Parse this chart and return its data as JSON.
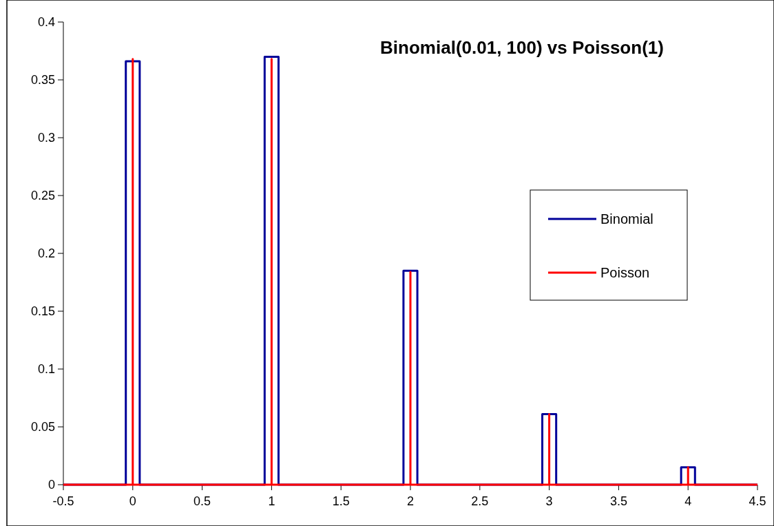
{
  "chart_data": {
    "type": "line",
    "title": "Binomial(0.01, 100) vs Poisson(1)",
    "series": [
      {
        "name": "Binomial",
        "color": "#000099",
        "x": [
          -0.5,
          -0.05,
          -0.05,
          0.05,
          0.05,
          0.95,
          0.95,
          1.05,
          1.05,
          1.95,
          1.95,
          2.05,
          2.05,
          2.95,
          2.95,
          3.05,
          3.05,
          3.95,
          3.95,
          4.05,
          4.05,
          4.5
        ],
        "values": [
          0,
          0,
          0.366,
          0.366,
          0,
          0,
          0.37,
          0.37,
          0,
          0,
          0.185,
          0.185,
          0,
          0,
          0.061,
          0.061,
          0,
          0,
          0.015,
          0.015,
          0,
          0
        ]
      },
      {
        "name": "Poisson",
        "color": "#ff0000",
        "x": [
          -0.5,
          0,
          0,
          0,
          1,
          1,
          1,
          2,
          2,
          2,
          3,
          3,
          3,
          4,
          4,
          4,
          4.5
        ],
        "values": [
          0,
          0,
          0.368,
          0,
          0,
          0.368,
          0,
          0,
          0.184,
          0,
          0,
          0.061,
          0,
          0,
          0.015,
          0,
          0
        ]
      }
    ],
    "xlim": [
      -0.5,
      4.5
    ],
    "xticks": [
      -0.5,
      0,
      0.5,
      1,
      1.5,
      2,
      2.5,
      3,
      3.5,
      4,
      4.5
    ],
    "ylim": [
      0,
      0.4
    ],
    "yticks": [
      0,
      0.05,
      0.1,
      0.15,
      0.2,
      0.25,
      0.3,
      0.35,
      0.4
    ],
    "grid": false,
    "legend": "right",
    "marker": "none",
    "line_style": "solid"
  }
}
